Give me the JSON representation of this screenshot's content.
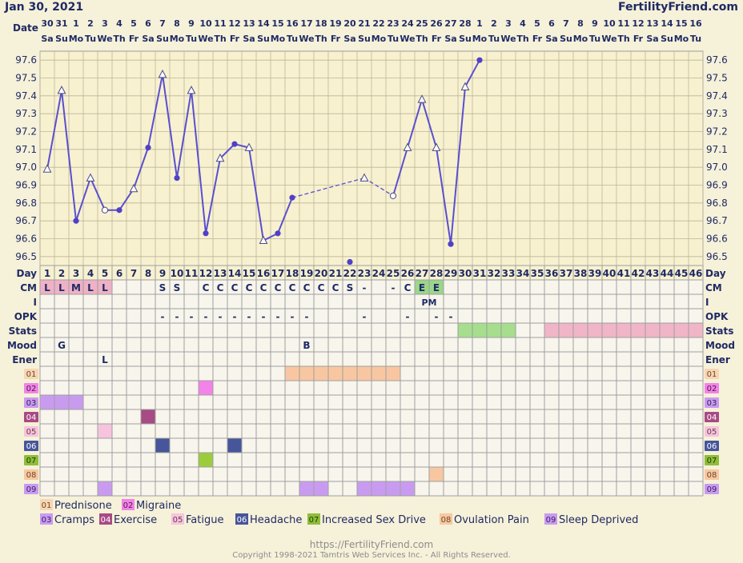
{
  "header": {
    "date": "Jan 30, 2021",
    "site": "FertilityFriend.com",
    "date_label": "Date"
  },
  "dates": [
    "30",
    "31",
    "1",
    "2",
    "3",
    "4",
    "5",
    "6",
    "7",
    "8",
    "9",
    "10",
    "11",
    "12",
    "13",
    "14",
    "15",
    "16",
    "17",
    "18",
    "19",
    "20",
    "21",
    "22",
    "23",
    "24",
    "25",
    "26",
    "27",
    "28",
    "1",
    "2",
    "3",
    "4",
    "5",
    "6",
    "7",
    "8",
    "9",
    "10",
    "11",
    "12",
    "13",
    "14",
    "15",
    "16"
  ],
  "weekdays": [
    "Sa",
    "Su",
    "Mo",
    "Tu",
    "We",
    "Th",
    "Fr",
    "Sa",
    "Su",
    "Mo",
    "Tu",
    "We",
    "Th",
    "Fr",
    "Sa",
    "Su",
    "Mo",
    "Tu",
    "We",
    "Th",
    "Fr",
    "Sa",
    "Su",
    "Mo",
    "Tu",
    "We",
    "Th",
    "Fr",
    "Sa",
    "Su",
    "Mo",
    "Tu",
    "We",
    "Th",
    "Fr",
    "Sa",
    "Su",
    "Mo",
    "Tu",
    "We",
    "Th",
    "Fr",
    "Sa",
    "Su",
    "Mo",
    "Tu"
  ],
  "chart_data": {
    "type": "line",
    "x_label": "Day",
    "x": [
      1,
      2,
      3,
      4,
      5,
      6,
      7,
      8,
      9,
      10,
      11,
      12,
      13,
      14,
      15,
      16,
      17,
      18,
      19,
      20,
      21,
      22,
      23,
      24,
      25,
      26,
      27,
      28,
      29,
      30,
      31
    ],
    "y_ticks": [
      "97.6",
      "97.5",
      "97.4",
      "97.3",
      "97.2",
      "97.1",
      "97.0",
      "96.9",
      "96.8",
      "96.7",
      "96.6",
      "96.5"
    ],
    "ylim": [
      96.45,
      97.65
    ],
    "temps": [
      {
        "day": 1,
        "temp": 96.99,
        "marker": "triangle"
      },
      {
        "day": 2,
        "temp": 97.43,
        "marker": "triangle"
      },
      {
        "day": 3,
        "temp": 96.7,
        "marker": "dot"
      },
      {
        "day": 4,
        "temp": 96.94,
        "marker": "triangle"
      },
      {
        "day": 5,
        "temp": 96.76,
        "marker": "circle"
      },
      {
        "day": 6,
        "temp": 96.76,
        "marker": "dot"
      },
      {
        "day": 7,
        "temp": 96.88,
        "marker": "triangle"
      },
      {
        "day": 8,
        "temp": 97.11,
        "marker": "dot"
      },
      {
        "day": 9,
        "temp": 97.52,
        "marker": "triangle"
      },
      {
        "day": 10,
        "temp": 96.94,
        "marker": "dot"
      },
      {
        "day": 11,
        "temp": 97.43,
        "marker": "triangle"
      },
      {
        "day": 12,
        "temp": 96.63,
        "marker": "dot"
      },
      {
        "day": 13,
        "temp": 97.05,
        "marker": "triangle"
      },
      {
        "day": 14,
        "temp": 97.13,
        "marker": "dot"
      },
      {
        "day": 15,
        "temp": 97.11,
        "marker": "triangle"
      },
      {
        "day": 16,
        "temp": 96.59,
        "marker": "triangle"
      },
      {
        "day": 17,
        "temp": 96.63,
        "marker": "dot"
      },
      {
        "day": 18,
        "temp": 96.83,
        "marker": "dot"
      },
      {
        "day": 23,
        "temp": 96.94,
        "marker": "triangle"
      },
      {
        "day": 25,
        "temp": 96.84,
        "marker": "circle"
      },
      {
        "day": 26,
        "temp": 97.11,
        "marker": "triangle"
      },
      {
        "day": 27,
        "temp": 97.38,
        "marker": "triangle"
      },
      {
        "day": 28,
        "temp": 97.11,
        "marker": "triangle"
      },
      {
        "day": 29,
        "temp": 96.57,
        "marker": "dot"
      },
      {
        "day": 30,
        "temp": 97.45,
        "marker": "triangle"
      },
      {
        "day": 31,
        "temp": 97.6,
        "marker": "dot"
      }
    ],
    "solid_segments": [
      [
        1,
        18
      ],
      [
        25,
        31
      ]
    ],
    "dashed_segments": [
      [
        18,
        23
      ],
      [
        23,
        25
      ]
    ],
    "discarded": [
      {
        "day": 22,
        "temp": 96.47
      }
    ]
  },
  "rows": [
    {
      "label": "CM",
      "cells": {
        "1": "L",
        "2": "L",
        "3": "M",
        "4": "L",
        "5": "L",
        "9": "S",
        "10": "S",
        "12": "C",
        "13": "C",
        "14": "C",
        "15": "C",
        "16": "C",
        "17": "C",
        "18": "C",
        "19": "C",
        "20": "C",
        "21": "C",
        "22": "S",
        "23": "-",
        "25": "-",
        "26": "C",
        "27": "E",
        "28": "E"
      }
    },
    {
      "label": "I",
      "cells": {
        "27": "PM"
      }
    },
    {
      "label": "OPK",
      "cells": {
        "9": "-",
        "10": "-",
        "11": "-",
        "12": "-",
        "13": "-",
        "14": "-",
        "15": "-",
        "16": "-",
        "17": "-",
        "18": "-",
        "19": "-",
        "23": "-",
        "26": "-",
        "28": "-",
        "29": "-"
      }
    },
    {
      "label": "Stats",
      "cells": {}
    },
    {
      "label": "Mood",
      "cells": {
        "2": "G",
        "19": "B"
      }
    },
    {
      "label": "Ener",
      "cells": {
        "5": "L"
      }
    },
    {
      "label": "01",
      "cells": {}
    },
    {
      "label": "02",
      "cells": {}
    },
    {
      "label": "03",
      "cells": {}
    },
    {
      "label": "04",
      "cells": {}
    },
    {
      "label": "05",
      "cells": {}
    },
    {
      "label": "06",
      "cells": {}
    },
    {
      "label": "07",
      "cells": {}
    },
    {
      "label": "08",
      "cells": {}
    },
    {
      "label": "09",
      "cells": {}
    }
  ],
  "cell_fills": [
    {
      "row": 0,
      "from": 1,
      "to": 5,
      "color": "#efb1c5"
    },
    {
      "row": 0,
      "from": 27,
      "to": 28,
      "color": "#9bd68a"
    },
    {
      "row": 3,
      "from": 30,
      "to": 33,
      "color": "#a6de8e"
    },
    {
      "row": 3,
      "from": 36,
      "to": 46,
      "color": "#f1b5c8"
    },
    {
      "row": 6,
      "from": 18,
      "to": 25,
      "color": "#f8c7a1"
    },
    {
      "row": 7,
      "from": 12,
      "to": 12,
      "color": "#f383e8"
    },
    {
      "row": 8,
      "from": 1,
      "to": 3,
      "color": "#c99bf0"
    },
    {
      "row": 9,
      "from": 8,
      "to": 8,
      "color": "#a84a84"
    },
    {
      "row": 10,
      "from": 5,
      "to": 5,
      "color": "#f6c4dc"
    },
    {
      "row": 11,
      "from": 9,
      "to": 9,
      "color": "#47559a"
    },
    {
      "row": 11,
      "from": 14,
      "to": 14,
      "color": "#47559a"
    },
    {
      "row": 12,
      "from": 12,
      "to": 12,
      "color": "#9ccc3c"
    },
    {
      "row": 13,
      "from": 28,
      "to": 28,
      "color": "#f8c7a1"
    },
    {
      "row": 14,
      "from": 5,
      "to": 5,
      "color": "#c99bf0"
    },
    {
      "row": 14,
      "from": 19,
      "to": 20,
      "color": "#c99bf0"
    },
    {
      "row": 14,
      "from": 23,
      "to": 26,
      "color": "#c99bf0"
    }
  ],
  "symptoms": [
    {
      "code": "01",
      "name": "Prednisone",
      "bg": "#f8d6b4",
      "fg": "#6b4a2a"
    },
    {
      "code": "02",
      "name": "Migraine",
      "bg": "#f383e8",
      "fg": "#4a1a48"
    },
    {
      "code": "03",
      "name": "Cramps",
      "bg": "#c99bf0",
      "fg": "#3a2160"
    },
    {
      "code": "04",
      "name": "Exercise",
      "bg": "#a84a84",
      "fg": "#ffffff"
    },
    {
      "code": "05",
      "name": "Fatigue",
      "bg": "#f6c4dc",
      "fg": "#6a3a50"
    },
    {
      "code": "06",
      "name": "Headache",
      "bg": "#47559a",
      "fg": "#ffffff"
    },
    {
      "code": "07",
      "name": "Increased Sex Drive",
      "bg": "#8fbd3a",
      "fg": "#1e3a0a"
    },
    {
      "code": "08",
      "name": "Ovulation Pain",
      "bg": "#f8c7a1",
      "fg": "#6b4a2a"
    },
    {
      "code": "09",
      "name": "Sleep Deprived",
      "bg": "#c99bf0",
      "fg": "#3a2160"
    }
  ],
  "footer": {
    "url": "https://FertilityFriend.com",
    "copyright": "Copyright 1998-2021 Tamtris Web Services Inc. - All Rights Reserved."
  }
}
